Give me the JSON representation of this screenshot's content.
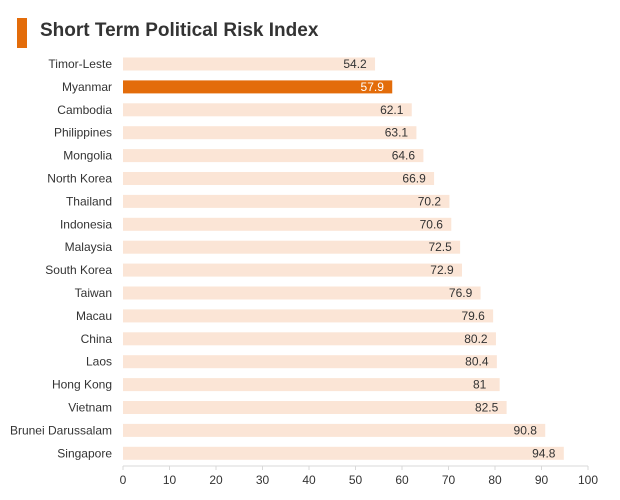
{
  "chart_data": {
    "type": "bar",
    "orientation": "horizontal",
    "title": "Short Term Political Risk Index",
    "categories": [
      "Timor-Leste",
      "Myanmar",
      "Cambodia",
      "Philippines",
      "Mongolia",
      "North Korea",
      "Thailand",
      "Indonesia",
      "Malaysia",
      "South Korea",
      "Taiwan",
      "Macau",
      "China",
      "Laos",
      "Hong Kong",
      "Vietnam",
      "Brunei Darussalam",
      "Singapore"
    ],
    "values": [
      54.2,
      57.9,
      62.1,
      63.1,
      64.6,
      66.9,
      70.2,
      70.6,
      72.5,
      72.9,
      76.9,
      79.6,
      80.2,
      80.4,
      81,
      82.5,
      90.8,
      94.8
    ],
    "value_labels": [
      "54.2",
      "57.9",
      "62.1",
      "63.1",
      "64.6",
      "66.9",
      "70.2",
      "70.6",
      "72.5",
      "72.9",
      "76.9",
      "79.6",
      "80.2",
      "80.4",
      "81",
      "82.5",
      "90.8",
      "94.8"
    ],
    "highlight_category": "Myanmar",
    "xlim": [
      0,
      100
    ],
    "xticks": [
      0,
      10,
      20,
      30,
      40,
      50,
      60,
      70,
      80,
      90,
      100
    ],
    "grid": false,
    "legend": "none",
    "colors": {
      "accent": "#e36c0a",
      "bar": "#fbe5d6",
      "highlight_bar": "#e36c0a",
      "axis": "#d9d9d9"
    }
  }
}
